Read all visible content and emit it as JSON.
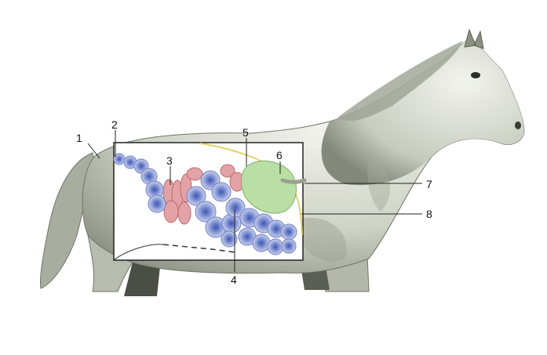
{
  "diagram": {
    "subject": "horse-digestive-tract",
    "labels": [
      "1",
      "2",
      "3",
      "4",
      "5",
      "6",
      "7",
      "8"
    ],
    "colors": {
      "horse_body": "#c9ccbf",
      "horse_shadow": "#8e9486",
      "small_colon": "#7f8fcf",
      "small_intestine": "#e3a2a6",
      "stomach": "#b9dfa5",
      "diaphragm_line": "#e3d36a",
      "frame": "#222222"
    }
  }
}
